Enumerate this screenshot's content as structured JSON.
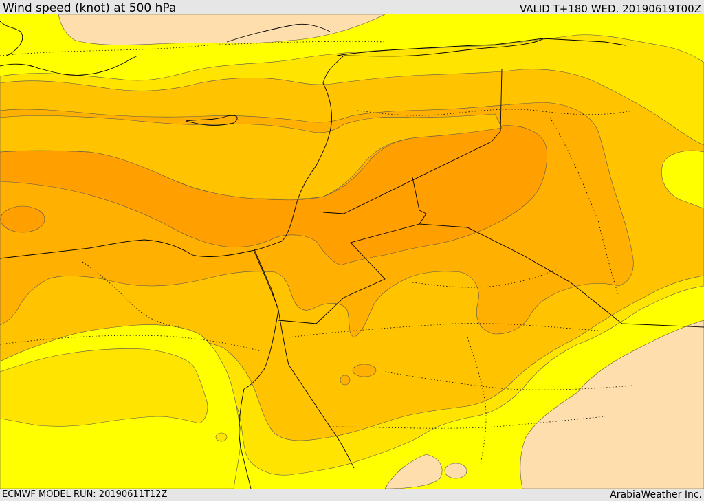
{
  "header": {
    "title": "Wind speed (knot) at 500 hPa",
    "valid": "VALID T+180 WED. 20190619T00Z"
  },
  "footer": {
    "model_run": "ECMWF MODEL RUN: 20190611T12Z",
    "credit": "ArabiaWeather Inc."
  },
  "map": {
    "colors": {
      "band_low": "#ffdead",
      "band_1": "#ffff00",
      "band_2": "#ffe400",
      "band_3": "#ffc300",
      "band_4": "#ffb000",
      "band_5": "#ff9f00",
      "contour": "#555555",
      "border": "#000000"
    }
  }
}
